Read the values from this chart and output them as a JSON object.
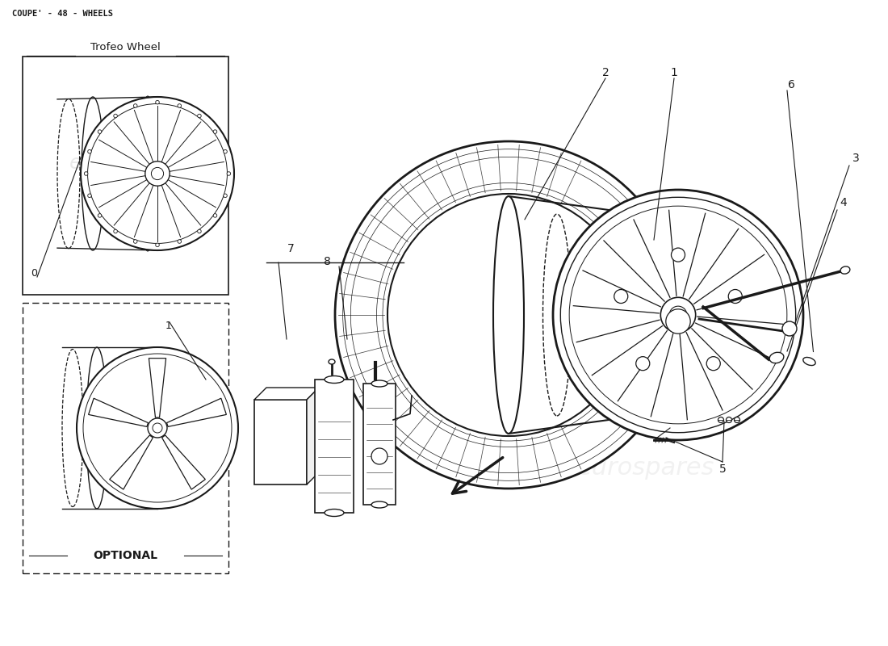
{
  "title": "COUPE' - 48 - WHEELS",
  "bg_color": "#ffffff",
  "line_color": "#1a1a1a",
  "trofeo_label": "Trofeo Wheel",
  "optional_label": "OPTIONAL",
  "part_labels": {
    "p0": "0",
    "p1_trofeo": "1",
    "p1_opt": "1",
    "p2": "2",
    "p3": "3",
    "p4": "4",
    "p5": "5",
    "p6": "6",
    "p7": "7",
    "p8": "8"
  },
  "figsize": [
    11.0,
    8.0
  ],
  "dpi": 100
}
